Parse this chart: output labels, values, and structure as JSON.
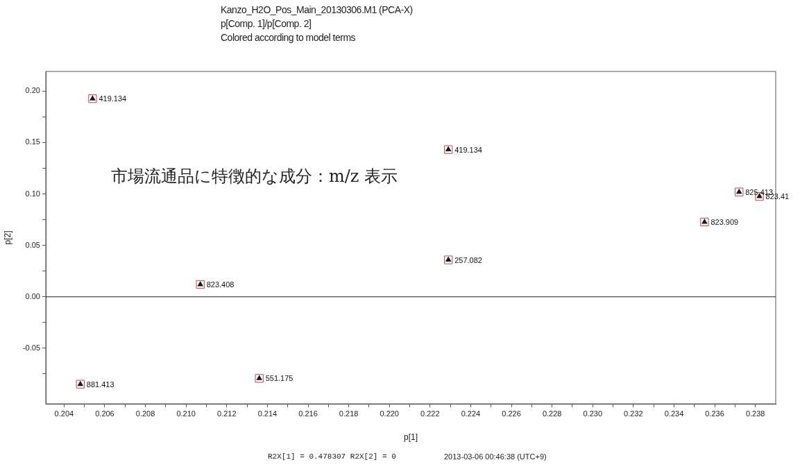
{
  "chart_data": {
    "type": "scatter",
    "title": "Kanzo_H2O_Pos_Main_20130306.M1 (PCA-X)",
    "subtitle": "p[Comp. 1]/p[Comp. 2]",
    "xlabel": "p[1]",
    "ylabel": "p[2]",
    "annotations": [
      "Colored according to model terms",
      "市場流通品に特徴的な成分：m/z 表示",
      "R2X[1] = 0.478307 R2X[2] = 0",
      "2013-03-06 00:46:38 (UTC+9)",
      {
        "text": "419.134",
        "x": 0.2054,
        "y": 0.1926
      },
      {
        "text": "419.134",
        "x": 0.2229,
        "y": 0.1431
      },
      {
        "text": "825.413",
        "x": 0.2372,
        "y": 0.1019
      },
      {
        "text": "823.41",
        "x": 0.2382,
        "y": 0.0976
      },
      {
        "text": "823.909",
        "x": 0.2355,
        "y": 0.0727
      },
      {
        "text": "257.082",
        "x": 0.2229,
        "y": 0.0359
      },
      {
        "text": "823.408",
        "x": 0.2107,
        "y": 0.012
      },
      {
        "text": "881.413",
        "x": 0.2048,
        "y": -0.0849
      },
      {
        "text": "551.175",
        "x": 0.2136,
        "y": -0.0793
      }
    ],
    "series": [
      {
        "color": "#d04040",
        "marker": "square",
        "x": [
          0.2054,
          0.2229,
          0.2372,
          0.2382,
          0.2355,
          0.2229,
          0.2107,
          0.2048,
          0.2136
        ],
        "values": [
          0.1926,
          0.1431,
          0.1019,
          0.0976,
          0.0727,
          0.0359,
          0.012,
          -0.0849,
          -0.0793
        ]
      },
      {
        "color": "#1a1a1a",
        "marker": "triangle",
        "x": [
          0.2054,
          0.2229,
          0.2372,
          0.2382,
          0.2355,
          0.2229,
          0.2107,
          0.2048,
          0.2136
        ],
        "values": [
          0.1926,
          0.1431,
          0.1019,
          0.0976,
          0.0727,
          0.0359,
          0.012,
          -0.0849,
          -0.0793
        ]
      }
    ],
    "xlim": [
      0.2031,
      0.239
    ],
    "ylim": [
      -0.104,
      0.219
    ],
    "xticks": [
      {
        "value": 0.204,
        "label": "0.204"
      },
      {
        "value": 0.205,
        "label": null
      },
      {
        "value": 0.206,
        "label": "0.206"
      },
      {
        "value": 0.207,
        "label": null
      },
      {
        "value": 0.208,
        "label": "0.208"
      },
      {
        "value": 0.209,
        "label": null
      },
      {
        "value": 0.21,
        "label": "0.210"
      },
      {
        "value": 0.211,
        "label": null
      },
      {
        "value": 0.212,
        "label": "0.212"
      },
      {
        "value": 0.213,
        "label": null
      },
      {
        "value": 0.214,
        "label": "0.214"
      },
      {
        "value": 0.215,
        "label": null
      },
      {
        "value": 0.216,
        "label": "0.216"
      },
      {
        "value": 0.217,
        "label": null
      },
      {
        "value": 0.218,
        "label": "0.218"
      },
      {
        "value": 0.219,
        "label": null
      },
      {
        "value": 0.22,
        "label": "0.220"
      },
      {
        "value": 0.221,
        "label": null
      },
      {
        "value": 0.222,
        "label": "0.222"
      },
      {
        "value": 0.223,
        "label": null
      },
      {
        "value": 0.224,
        "label": "0.224"
      },
      {
        "value": 0.225,
        "label": null
      },
      {
        "value": 0.226,
        "label": "0.226"
      },
      {
        "value": 0.227,
        "label": null
      },
      {
        "value": 0.228,
        "label": "0.228"
      },
      {
        "value": 0.229,
        "label": null
      },
      {
        "value": 0.23,
        "label": "0.230"
      },
      {
        "value": 0.231,
        "label": null
      },
      {
        "value": 0.232,
        "label": "0.232"
      },
      {
        "value": 0.233,
        "label": null
      },
      {
        "value": 0.234,
        "label": "0.234"
      },
      {
        "value": 0.235,
        "label": null
      },
      {
        "value": 0.236,
        "label": "0.236"
      },
      {
        "value": 0.237,
        "label": null
      },
      {
        "value": 0.238,
        "label": "0.238"
      }
    ],
    "yticks": [
      {
        "value": -0.075,
        "label": null
      },
      {
        "value": -0.05,
        "label": "-0.05"
      },
      {
        "value": -0.025,
        "label": null
      },
      {
        "value": 0,
        "label": "0.00"
      },
      {
        "value": 0.025,
        "label": null
      },
      {
        "value": 0.05,
        "label": "0.05"
      },
      {
        "value": 0.075,
        "label": null
      },
      {
        "value": 0.1,
        "label": "0.10"
      },
      {
        "value": 0.125,
        "label": null
      },
      {
        "value": 0.15,
        "label": "0.15"
      },
      {
        "value": 0.175,
        "label": null
      },
      {
        "value": 0.2,
        "label": "0.20"
      }
    ],
    "ref_lines": [
      {
        "axis": "y",
        "value": 0,
        "color": "#222222"
      }
    ],
    "legend": false
  }
}
